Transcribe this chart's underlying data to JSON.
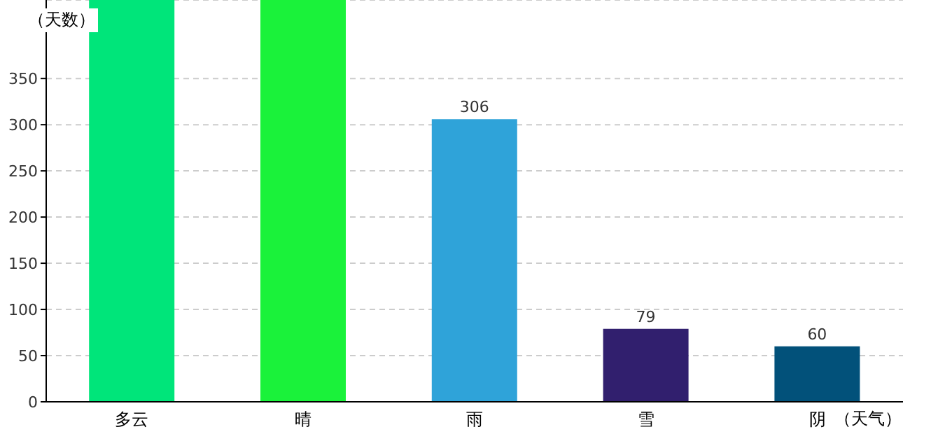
{
  "chart_data": {
    "type": "bar",
    "xlabel": "（天气）",
    "ylabel": "（天数）",
    "categories": [
      "多云",
      "晴",
      "雨",
      "雪",
      "阴"
    ],
    "values": [
      435,
      435,
      306,
      79,
      60
    ],
    "colors": [
      "#00e57a",
      "#1af23a",
      "#2fa3d9",
      "#311f6e",
      "#02517a"
    ],
    "value_labels": [
      null,
      null,
      "306",
      "79",
      "60"
    ],
    "ylim": [
      0,
      435
    ],
    "yticks": [
      0,
      50,
      100,
      150,
      200,
      250,
      300,
      350
    ],
    "grid": "y"
  }
}
